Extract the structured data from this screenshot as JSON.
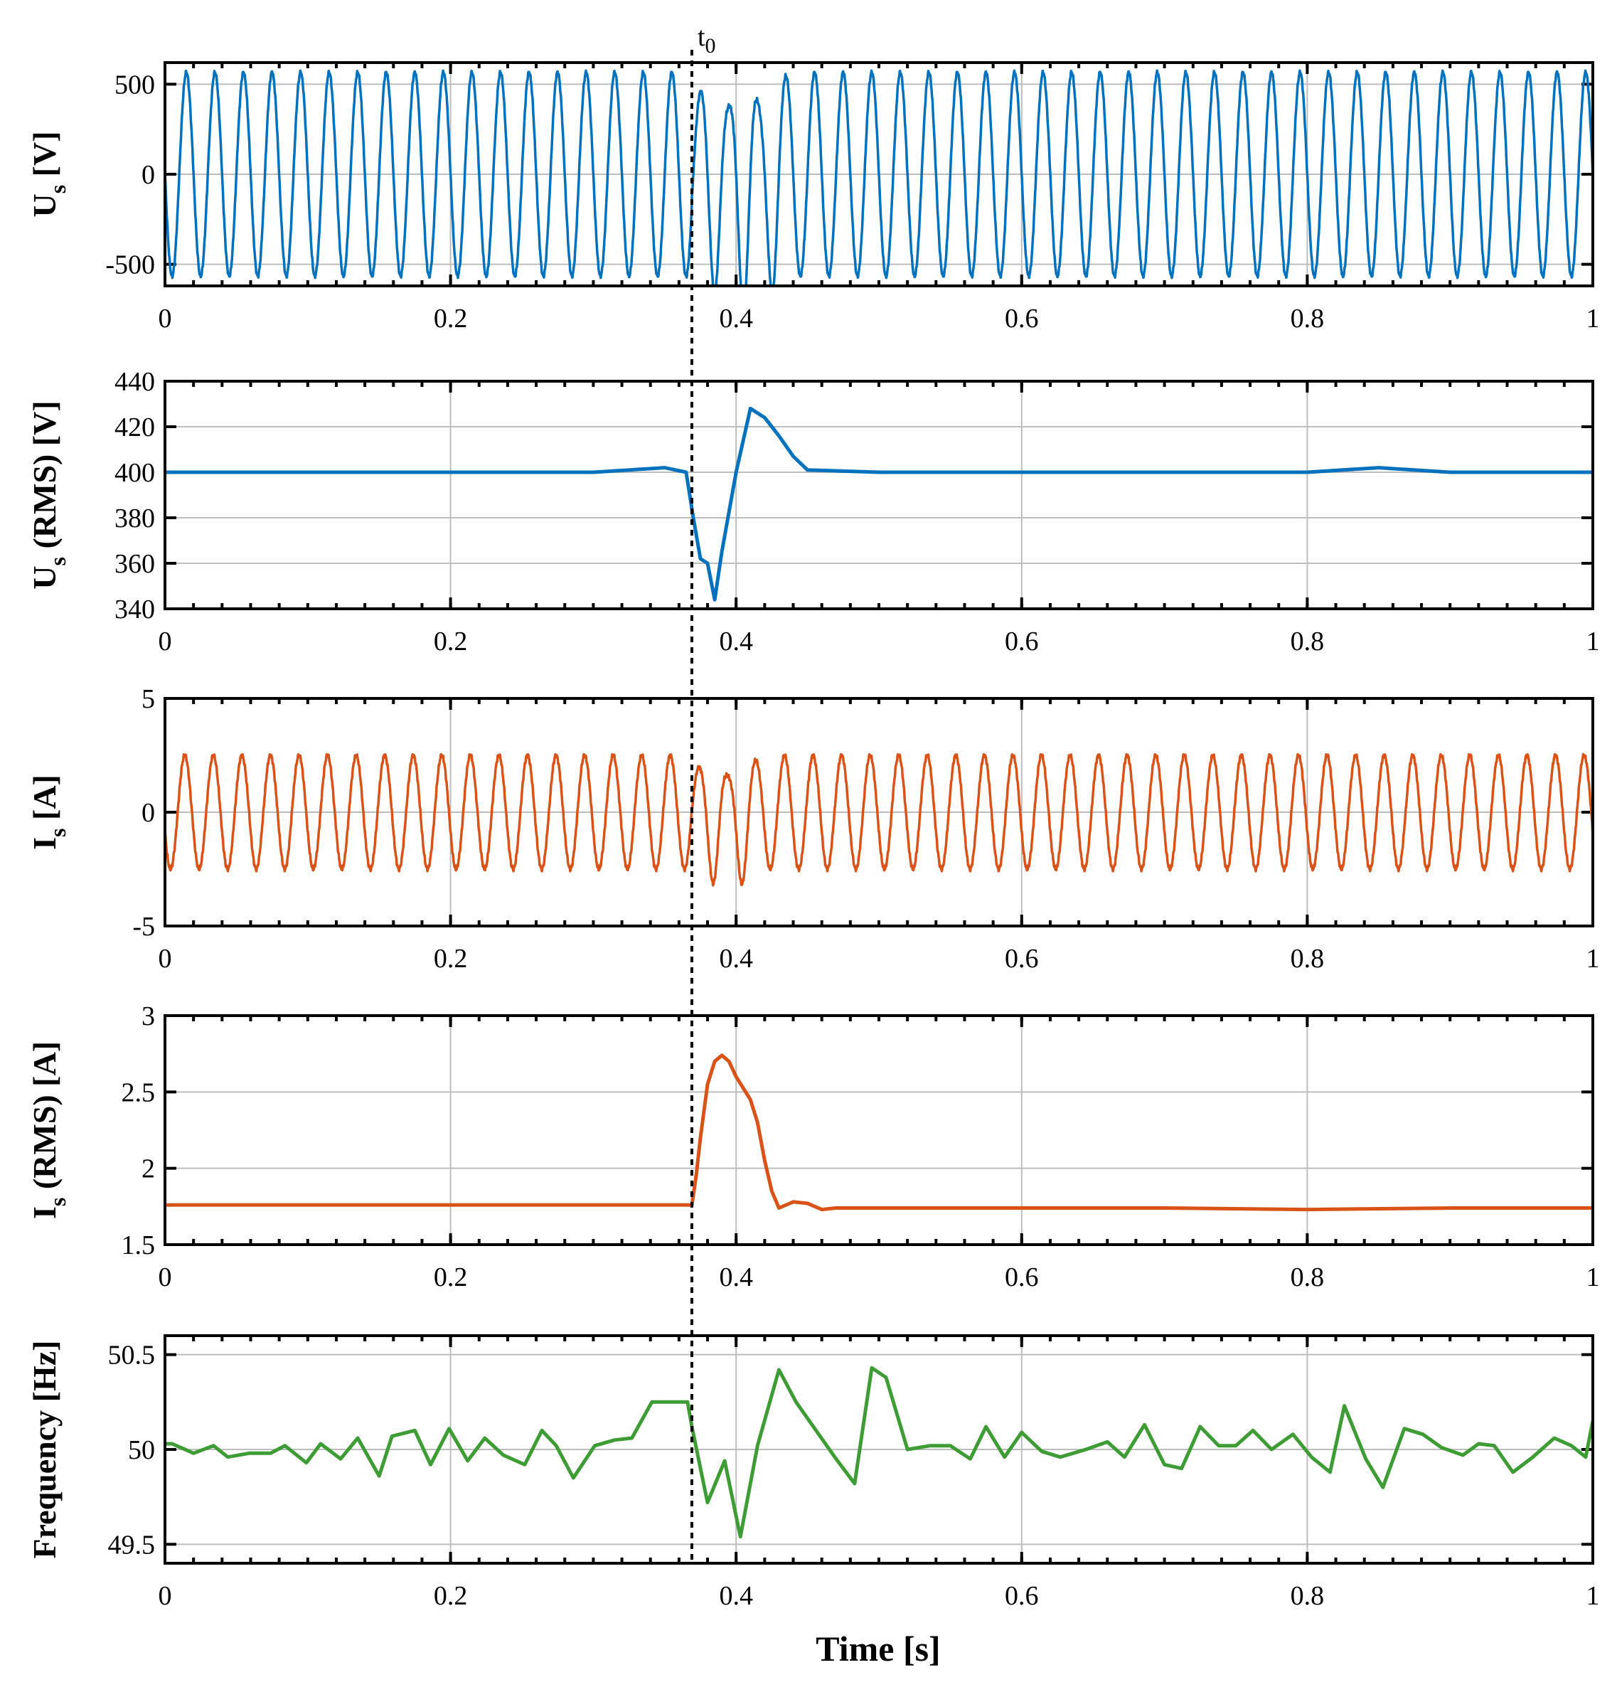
{
  "chart_data": {
    "type": "line",
    "x_label": "Time [s]",
    "event_label": "t",
    "event_sub": "0",
    "event_time": 0.369,
    "x_range": [
      0,
      1
    ],
    "x_ticks": [
      0,
      0.2,
      0.4,
      0.6,
      0.8,
      1
    ],
    "x_tick_labels": [
      "0",
      "0.2",
      "0.4",
      "0.6",
      "0.8",
      "1"
    ],
    "colors": {
      "voltage": "#0072BD",
      "current": "#D95319",
      "frequency": "#3E9C35"
    },
    "panels": [
      {
        "id": "us",
        "ylabel_main": "U",
        "ylabel_sub": "s",
        "ylabel_rest": " [V]",
        "color_key": "voltage",
        "ylim": [
          -620,
          620
        ],
        "y_ticks": [
          -500,
          0,
          500
        ],
        "y_tick_labels": [
          "-500",
          "0",
          "500"
        ],
        "kind": "sine",
        "sine": {
          "freq_hz": 50,
          "amplitude": 566,
          "phase_deg": 180,
          "transient": [
            0.369,
            0.44
          ]
        }
      },
      {
        "id": "us_rms",
        "ylabel_main": "U",
        "ylabel_sub": "s",
        "ylabel_rest": " (RMS) [V]",
        "color_key": "voltage",
        "ylim": [
          340,
          440
        ],
        "y_ticks": [
          340,
          360,
          380,
          400,
          420,
          440
        ],
        "y_tick_labels": [
          "340",
          "360",
          "380",
          "400",
          "420",
          "440"
        ],
        "kind": "line",
        "x": [
          0,
          0.05,
          0.1,
          0.15,
          0.2,
          0.25,
          0.3,
          0.35,
          0.365,
          0.37,
          0.375,
          0.38,
          0.385,
          0.39,
          0.4,
          0.41,
          0.42,
          0.43,
          0.44,
          0.45,
          0.5,
          0.6,
          0.7,
          0.8,
          0.85,
          0.9,
          1.0
        ],
        "y": [
          400,
          400,
          400,
          400,
          400,
          400,
          400,
          402,
          400,
          380,
          362,
          360,
          344,
          365,
          400,
          428,
          424,
          416,
          407,
          401,
          400,
          400,
          400,
          400,
          402,
          400,
          400
        ]
      },
      {
        "id": "is",
        "ylabel_main": "I",
        "ylabel_sub": "s",
        "ylabel_rest": " [A]",
        "color_key": "current",
        "ylim": [
          -5,
          5
        ],
        "y_ticks": [
          -5,
          0,
          5
        ],
        "y_tick_labels": [
          "-5",
          "0",
          "5"
        ],
        "kind": "sine",
        "sine": {
          "freq_hz": 50,
          "amplitude": 2.5,
          "phase_deg": 200,
          "transient": [
            0.369,
            0.42
          ]
        }
      },
      {
        "id": "is_rms",
        "ylabel_main": "I",
        "ylabel_sub": "s",
        "ylabel_rest": " (RMS) [A]",
        "color_key": "current",
        "ylim": [
          1.5,
          3
        ],
        "y_ticks": [
          1.5,
          2,
          2.5,
          3
        ],
        "y_tick_labels": [
          "1.5",
          "2",
          "2.5",
          "3"
        ],
        "kind": "line",
        "x": [
          0,
          0.1,
          0.2,
          0.3,
          0.369,
          0.372,
          0.375,
          0.38,
          0.385,
          0.39,
          0.395,
          0.4,
          0.41,
          0.415,
          0.42,
          0.425,
          0.43,
          0.44,
          0.45,
          0.46,
          0.47,
          0.5,
          0.6,
          0.7,
          0.8,
          0.9,
          1.0
        ],
        "y": [
          1.76,
          1.76,
          1.76,
          1.76,
          1.76,
          1.95,
          2.2,
          2.55,
          2.7,
          2.74,
          2.7,
          2.6,
          2.45,
          2.3,
          2.05,
          1.85,
          1.74,
          1.78,
          1.77,
          1.73,
          1.74,
          1.74,
          1.74,
          1.74,
          1.73,
          1.74,
          1.74
        ]
      },
      {
        "id": "freq",
        "ylabel_main": "Frequency [Hz]",
        "ylabel_sub": "",
        "ylabel_rest": "",
        "color_key": "frequency",
        "ylim": [
          49.4,
          50.6
        ],
        "y_ticks": [
          49.5,
          50,
          50.5
        ],
        "y_tick_labels": [
          "49.5",
          "50",
          "50.5"
        ],
        "kind": "line",
        "x": [
          0,
          0.005,
          0.02,
          0.034,
          0.044,
          0.059,
          0.074,
          0.084,
          0.099,
          0.109,
          0.123,
          0.135,
          0.15,
          0.159,
          0.175,
          0.186,
          0.199,
          0.212,
          0.224,
          0.237,
          0.252,
          0.264,
          0.274,
          0.286,
          0.301,
          0.315,
          0.327,
          0.341,
          0.366,
          0.369,
          0.38,
          0.392,
          0.403,
          0.415,
          0.43,
          0.442,
          0.456,
          0.47,
          0.483,
          0.495,
          0.505,
          0.52,
          0.536,
          0.55,
          0.564,
          0.575,
          0.588,
          0.6,
          0.614,
          0.627,
          0.645,
          0.66,
          0.672,
          0.686,
          0.7,
          0.712,
          0.725,
          0.738,
          0.75,
          0.762,
          0.775,
          0.79,
          0.803,
          0.816,
          0.826,
          0.841,
          0.853,
          0.868,
          0.881,
          0.894,
          0.909,
          0.92,
          0.931,
          0.944,
          0.958,
          0.973,
          0.985,
          0.995,
          1.0
        ],
        "y": [
          50.03,
          50.03,
          49.98,
          50.02,
          49.96,
          49.98,
          49.98,
          50.02,
          49.93,
          50.03,
          49.95,
          50.06,
          49.86,
          50.07,
          50.1,
          49.92,
          50.11,
          49.94,
          50.06,
          49.97,
          49.92,
          50.1,
          50.02,
          49.85,
          50.02,
          50.05,
          50.06,
          50.25,
          50.25,
          50.12,
          49.72,
          49.94,
          49.54,
          50.02,
          50.42,
          50.25,
          50.1,
          49.95,
          49.82,
          50.43,
          50.38,
          50,
          50.02,
          50.02,
          49.95,
          50.12,
          49.96,
          50.09,
          49.99,
          49.96,
          50,
          50.04,
          49.96,
          50.13,
          49.92,
          49.9,
          50.12,
          50.02,
          50.02,
          50.1,
          50,
          50.08,
          49.96,
          49.88,
          50.23,
          49.95,
          49.8,
          50.11,
          50.08,
          50.01,
          49.97,
          50.03,
          50.02,
          49.88,
          49.96,
          50.06,
          50.02,
          49.96,
          50.15
        ]
      }
    ]
  }
}
